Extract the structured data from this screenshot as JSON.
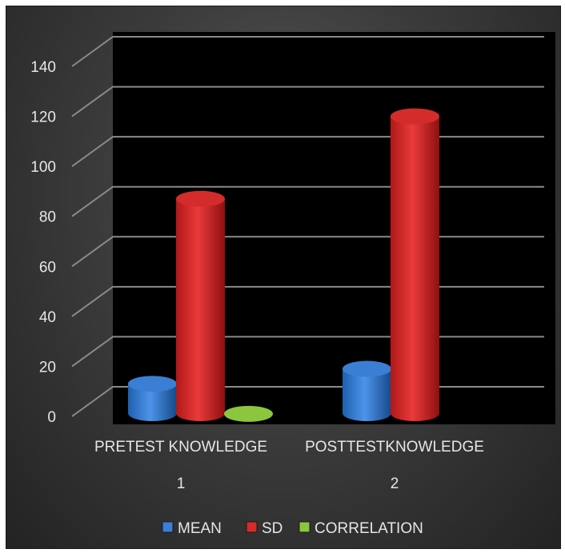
{
  "chart_data": {
    "type": "bar",
    "categories": [
      "PRETEST KNOWLEDGE",
      "POSTTESTKNOWLEDGE"
    ],
    "category_numbers": [
      "1",
      "2"
    ],
    "series": [
      {
        "name": "MEAN",
        "color": "#3a7fd4",
        "values": [
          13,
          19
        ]
      },
      {
        "name": "SD",
        "color": "#d42b2b",
        "values": [
          87,
          120
        ]
      },
      {
        "name": "CORRELATION",
        "color": "#8cc63e",
        "values": [
          1,
          0
        ]
      }
    ],
    "ylim": [
      0,
      140
    ],
    "yticks": [
      0,
      20,
      40,
      60,
      80,
      100,
      120,
      140
    ],
    "grid": true,
    "legend_position": "bottom",
    "style": "3d-cylinder"
  }
}
